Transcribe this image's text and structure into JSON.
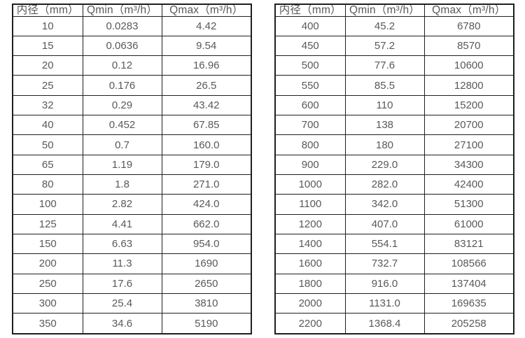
{
  "page": {
    "background_color": "#ffffff",
    "text_color": "#595959",
    "border_color": "#1f1f1f"
  },
  "tables": [
    {
      "name": "flow-spec-small-diameters",
      "headers": [
        "内径（mm）",
        "Qmin（m³/h）",
        "Qmax（m³/h）"
      ],
      "rows": [
        [
          "10",
          "0.0283",
          "4.42"
        ],
        [
          "15",
          "0.0636",
          "9.54"
        ],
        [
          "20",
          "0.12",
          "16.96"
        ],
        [
          "25",
          "0.176",
          "26.5"
        ],
        [
          "32",
          "0.29",
          "43.42"
        ],
        [
          "40",
          "0.452",
          "67.85"
        ],
        [
          "50",
          "0.7",
          "160.0"
        ],
        [
          "65",
          "1.19",
          "179.0"
        ],
        [
          "80",
          "1.8",
          "271.0"
        ],
        [
          "100",
          "2.82",
          "424.0"
        ],
        [
          "125",
          "4.41",
          "662.0"
        ],
        [
          "150",
          "6.63",
          "954.0"
        ],
        [
          "200",
          "11.3",
          "1690"
        ],
        [
          "250",
          "17.6",
          "2650"
        ],
        [
          "300",
          "25.4",
          "3810"
        ],
        [
          "350",
          "34.6",
          "5190"
        ]
      ]
    },
    {
      "name": "flow-spec-large-diameters",
      "headers": [
        "内径（mm）",
        "Qmin（m³/h）",
        "Qmax（m³/h）"
      ],
      "rows": [
        [
          "400",
          "45.2",
          "6780"
        ],
        [
          "450",
          "57.2",
          "8570"
        ],
        [
          "500",
          "77.6",
          "10600"
        ],
        [
          "550",
          "85.5",
          "12800"
        ],
        [
          "600",
          "110",
          "15200"
        ],
        [
          "700",
          "138",
          "20700"
        ],
        [
          "800",
          "180",
          "27100"
        ],
        [
          "900",
          "229.0",
          "34300"
        ],
        [
          "1000",
          "282.0",
          "42400"
        ],
        [
          "1100",
          "342.0",
          "51300"
        ],
        [
          "1200",
          "407.0",
          "61000"
        ],
        [
          "1400",
          "554.1",
          "83121"
        ],
        [
          "1600",
          "732.7",
          "108566"
        ],
        [
          "1800",
          "916.0",
          "137404"
        ],
        [
          "2000",
          "1131.0",
          "169635"
        ],
        [
          "2200",
          "1368.4",
          "205258"
        ]
      ]
    }
  ]
}
